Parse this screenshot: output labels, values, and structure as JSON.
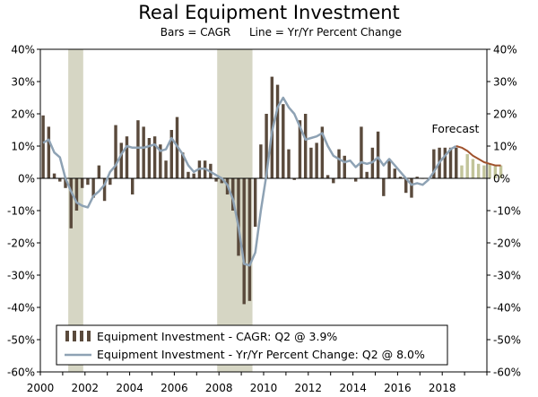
{
  "chart_data": {
    "type": "bar",
    "title": "Real Equipment Investment",
    "subtitle_bars": "Bars = CAGR",
    "subtitle_line": "Line = Yr/Yr Percent Change",
    "ylim": [
      -60,
      40
    ],
    "y_ticks": [
      -60,
      -50,
      -40,
      -30,
      -20,
      -10,
      0,
      10,
      20,
      30,
      40
    ],
    "y_tick_labels": [
      "-60%",
      "-50%",
      "-40%",
      "-30%",
      "-20%",
      "-10%",
      "0%",
      "10%",
      "20%",
      "30%",
      "40%"
    ],
    "x_range": [
      2000.0,
      2020.0
    ],
    "x_tick_labels": [
      "2000",
      "2002",
      "2004",
      "2006",
      "2008",
      "2010",
      "2012",
      "2014",
      "2016",
      "2018"
    ],
    "x_ticks": [
      2000,
      2002,
      2004,
      2006,
      2008,
      2010,
      2012,
      2014,
      2016,
      2018
    ],
    "recessions": [
      {
        "start": 2001.25,
        "end": 2001.92
      },
      {
        "start": 2007.92,
        "end": 2009.5
      }
    ],
    "forecast_label": "Forecast",
    "forecast_start": 2018.75,
    "colors": {
      "bar": "#5a4a3c",
      "bar_forecast": "#c2c49a",
      "line": "#8ea2b4",
      "line_forecast": "#a0522d",
      "recession": "#d6d6c4",
      "axis": "#000000"
    },
    "series": [
      {
        "name": "Equipment Investment - CAGR: Q2 @ 3.9%",
        "kind": "bar",
        "start": 2000.0,
        "step": 0.25,
        "values": [
          19.5,
          16,
          1.5,
          -1,
          -3,
          -15.5,
          -10,
          -3,
          -2,
          -6,
          4,
          -7,
          -2,
          16.5,
          11,
          13,
          -5,
          18,
          16,
          12.5,
          13,
          10.5,
          5.5,
          15,
          19,
          8,
          2,
          1.5,
          5.5,
          5.5,
          4.5,
          -1,
          -1.5,
          -5,
          -10,
          -24,
          -39,
          -38,
          -15,
          10.5,
          20,
          31.5,
          29,
          23,
          9,
          -0.5,
          18,
          20,
          9.5,
          11,
          16,
          1,
          -1.5,
          9,
          7,
          0,
          -1,
          16,
          2,
          9.5,
          14.5,
          -5.5,
          6,
          3,
          0.5,
          -4.5,
          -6,
          0.5,
          0,
          0,
          9,
          9.5,
          9.5,
          9.5,
          9.5,
          4,
          7.5,
          6,
          4.5,
          4,
          4.5,
          4,
          4
        ]
      },
      {
        "name": "Equipment Investment - Yr/Yr Percent Change: Q2 @ 8.0%",
        "kind": "line",
        "start": 2000.0,
        "step": 0.25,
        "values": [
          11,
          12,
          8,
          6.5,
          0,
          -4,
          -7.5,
          -8.5,
          -9,
          -5.5,
          -4,
          -2,
          2,
          4,
          7.5,
          10,
          9.5,
          9.5,
          9.5,
          10,
          10.5,
          8.5,
          9,
          12.5,
          10,
          7.5,
          4,
          2,
          3,
          3,
          2,
          1,
          0,
          -2,
          -6.5,
          -15,
          -26.5,
          -27,
          -23,
          -10,
          1,
          14.5,
          22,
          25,
          22,
          20,
          16,
          12,
          12.5,
          13,
          14,
          10,
          7,
          6,
          5,
          5.5,
          3.5,
          5,
          4.5,
          5,
          6.5,
          4,
          6,
          4,
          2,
          0,
          -2,
          -1.5,
          -2,
          -0.5,
          2,
          5,
          7,
          9,
          10,
          9.5,
          8.5,
          7,
          6,
          5,
          4.5,
          4,
          4
        ]
      }
    ],
    "legend": [
      "Equipment Investment - CAGR: Q2 @ 3.9%",
      "Equipment Investment - Yr/Yr Percent Change: Q2 @ 8.0%"
    ]
  }
}
